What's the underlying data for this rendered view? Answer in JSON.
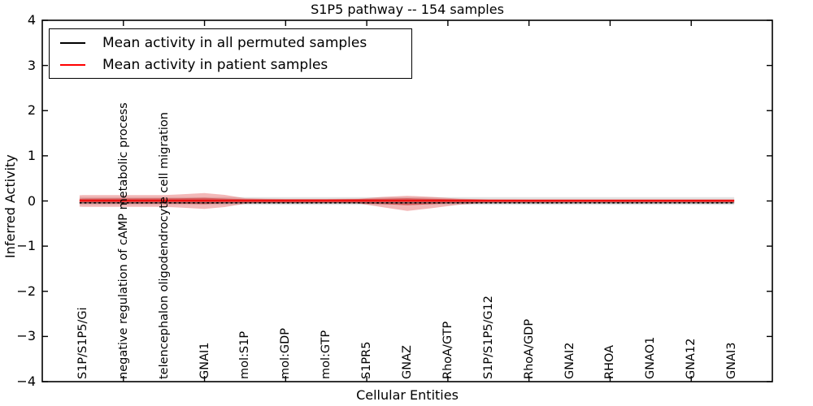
{
  "chart_data": {
    "type": "area",
    "subtype": "violin-band-around-mean-lines",
    "title": "S1P5 pathway -- 154 samples",
    "xlabel": "Cellular Entities",
    "ylabel": "Inferred Activity",
    "sample_count_in_title": 154,
    "xlim": [
      -1,
      17
    ],
    "ylim": [
      -4,
      4
    ],
    "grid": false,
    "legend_position": "upper left",
    "yticks": [
      {
        "value": 4,
        "label": "4"
      },
      {
        "value": 3,
        "label": "3"
      },
      {
        "value": 2,
        "label": "2"
      },
      {
        "value": 1,
        "label": "1"
      },
      {
        "value": 0,
        "label": "0"
      },
      {
        "value": -1,
        "label": "−1"
      },
      {
        "value": -2,
        "label": "−2"
      },
      {
        "value": -3,
        "label": "−3"
      },
      {
        "value": -4,
        "label": "−4"
      }
    ],
    "top_tick_positions": [
      1,
      3,
      5,
      7,
      9,
      11,
      13,
      15
    ],
    "categories": [
      "S1P/S1P5/Gi",
      "negative regulation of cAMP metabolic process",
      "telencephalon oligodendrocyte cell migration",
      "GNAI1",
      "mol:S1P",
      "mol:GDP",
      "mol:GTP",
      "S1PR5",
      "GNAZ",
      "RhoA/GTP",
      "S1P/S1P5/G12",
      "RhoA/GDP",
      "GNAI2",
      "RHOA",
      "GNAO1",
      "GNA12",
      "GNAI3"
    ],
    "series": [
      {
        "name": "Mean activity in all permuted samples",
        "color": "#000000",
        "style": "dashed",
        "values": [
          -0.03,
          -0.03,
          -0.03,
          -0.03,
          -0.03,
          -0.03,
          -0.03,
          -0.03,
          -0.03,
          -0.03,
          -0.03,
          -0.03,
          -0.03,
          -0.03,
          -0.03,
          -0.03,
          -0.03
        ]
      },
      {
        "name": "Mean activity in patient samples",
        "color": "#ff0000",
        "style": "solid",
        "values": [
          0.01,
          0.01,
          0.01,
          0.01,
          0.01,
          0.01,
          0.01,
          0.01,
          0.01,
          0.01,
          0.01,
          0.01,
          0.01,
          0.01,
          0.01,
          0.01,
          0.01
        ]
      }
    ],
    "lines": [
      {
        "name": "mean-permuted-underlay",
        "color": "#555555",
        "width": 1.2,
        "y": -0.042,
        "x": [
          -0.08,
          16.06
        ],
        "dash": null
      },
      {
        "name": "mean-permuted-dashed",
        "color": "#000000",
        "width": 1.7,
        "y": -0.042,
        "x": [
          -0.08,
          16.06
        ],
        "dash": "2.6 3.2"
      },
      {
        "name": "mean-patient",
        "color": "#ee1111",
        "width": 2.4,
        "y": 0.008,
        "x": [
          -0.08,
          16.06
        ],
        "dash": null
      }
    ],
    "bands": [
      {
        "name": "permuted-samples-spread",
        "fill": "#999999",
        "opacity": 0.28,
        "points": [
          [
            -0.08,
            0.085,
            0.085
          ],
          [
            16.06,
            0.085,
            0.085
          ]
        ]
      },
      {
        "name": "patient-samples-spread-outer",
        "fill": "#dd3333",
        "opacity": 0.35,
        "points": [
          [
            -0.08,
            0.125,
            0.125
          ],
          [
            0,
            0.13,
            0.13
          ],
          [
            1,
            0.13,
            0.13
          ],
          [
            2,
            0.13,
            0.13
          ],
          [
            2.4,
            0.145,
            0.145
          ],
          [
            3,
            0.175,
            0.175
          ],
          [
            3.5,
            0.135,
            0.135
          ],
          [
            4,
            0.06,
            0.06
          ],
          [
            4.5,
            0.05,
            0.05
          ],
          [
            5,
            0.045,
            0.045
          ],
          [
            6,
            0.045,
            0.045
          ],
          [
            6.8,
            0.05,
            0.055
          ],
          [
            7.4,
            0.09,
            0.14
          ],
          [
            8,
            0.115,
            0.22
          ],
          [
            8.6,
            0.09,
            0.16
          ],
          [
            9.3,
            0.05,
            0.08
          ],
          [
            10,
            0.035,
            0.04
          ],
          [
            11,
            0.032,
            0.032
          ],
          [
            16.06,
            0.032,
            0.032
          ]
        ]
      },
      {
        "name": "patient-samples-spread-inner",
        "fill": "#cc2222",
        "opacity": 0.55,
        "points": [
          [
            -0.08,
            0.05,
            0.05
          ],
          [
            0,
            0.055,
            0.055
          ],
          [
            2.4,
            0.06,
            0.06
          ],
          [
            3,
            0.07,
            0.07
          ],
          [
            3.6,
            0.05,
            0.05
          ],
          [
            4,
            0.04,
            0.04
          ],
          [
            5,
            0.035,
            0.035
          ],
          [
            6,
            0.035,
            0.035
          ],
          [
            7.4,
            0.05,
            0.07
          ],
          [
            8,
            0.06,
            0.095
          ],
          [
            9,
            0.04,
            0.055
          ],
          [
            10,
            0.028,
            0.03
          ],
          [
            16.06,
            0.026,
            0.026
          ]
        ]
      }
    ]
  },
  "legend": {
    "items": [
      {
        "label": "Mean activity in all permuted samples",
        "color": "#000000"
      },
      {
        "label": "Mean activity in patient samples",
        "color": "#ff0000"
      }
    ]
  }
}
